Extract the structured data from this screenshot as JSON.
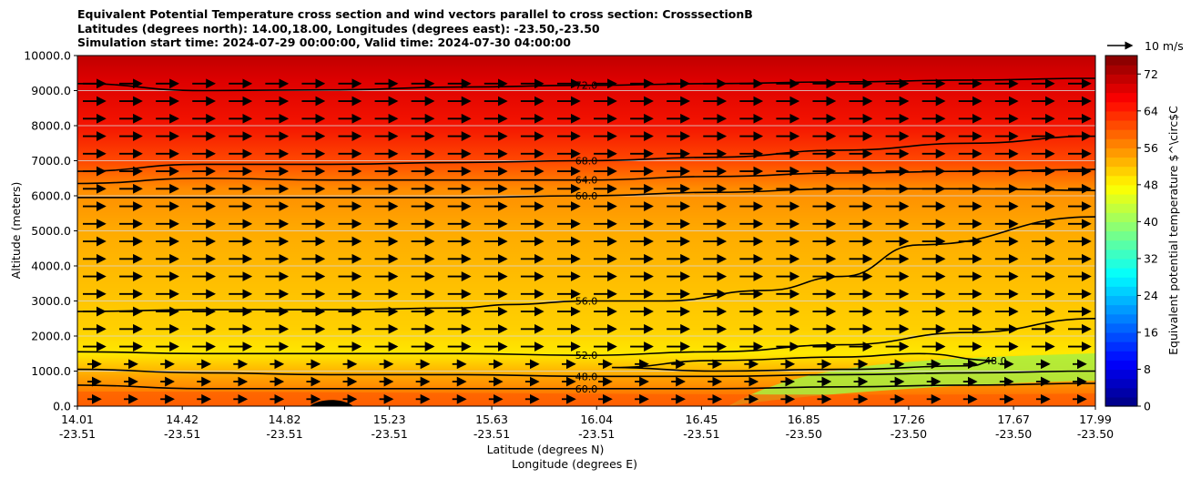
{
  "chart_data": {
    "type": "heatmap",
    "title": "Equivalent Potential Temperature cross section and wind vectors parallel to cross section: CrosssectionB",
    "subtitle_lines": [
      "Latitudes (degrees north): 14.00,18.00, Longitudes (degrees east): -23.50,-23.50",
      "Simulation start time: 2024-07-29 00:00:00, Valid time: 2024-07-30 04:00:00"
    ],
    "xlabel_lines": [
      "Latitude (degrees N)",
      "Longitude (degrees E)"
    ],
    "ylabel": "Altitude (meters)",
    "ylim": [
      0,
      10000
    ],
    "xlim": [
      14.01,
      17.99
    ],
    "y_ticks": [
      "0.0",
      "1000.0",
      "2000.0",
      "3000.0",
      "4000.0",
      "5000.0",
      "6000.0",
      "7000.0",
      "8000.0",
      "9000.0",
      "10000.0"
    ],
    "x_ticks": [
      {
        "lat": "14.01",
        "lon": "-23.51"
      },
      {
        "lat": "14.42",
        "lon": "-23.51"
      },
      {
        "lat": "14.82",
        "lon": "-23.51"
      },
      {
        "lat": "15.23",
        "lon": "-23.51"
      },
      {
        "lat": "15.63",
        "lon": "-23.51"
      },
      {
        "lat": "16.04",
        "lon": "-23.51"
      },
      {
        "lat": "16.45",
        "lon": "-23.51"
      },
      {
        "lat": "16.85",
        "lon": "-23.50"
      },
      {
        "lat": "17.26",
        "lon": "-23.50"
      },
      {
        "lat": "17.67",
        "lon": "-23.50"
      },
      {
        "lat": "17.99",
        "lon": "-23.50"
      }
    ],
    "grid": "horizontal",
    "colorbar": {
      "label": "Equivalent potential temperature $^\\circ$C",
      "range": [
        0,
        76
      ],
      "ticks": [
        "0",
        "8",
        "16",
        "24",
        "32",
        "40",
        "48",
        "56",
        "64",
        "72"
      ],
      "colormap": "jet"
    },
    "quiver_key": {
      "label": "10 m/s",
      "position": "top-right"
    },
    "contours": [
      {
        "level": 72.0,
        "x": [
          14.01,
          14.5,
          15.0,
          15.5,
          16.0,
          16.5,
          17.0,
          17.5,
          17.99
        ],
        "y": [
          9200,
          9000,
          9020,
          9100,
          9150,
          9200,
          9250,
          9300,
          9350
        ]
      },
      {
        "level": 68.0,
        "x": [
          14.01,
          14.5,
          15.0,
          15.5,
          16.0,
          16.5,
          17.0,
          17.5,
          17.99
        ],
        "y": [
          6700,
          6900,
          6900,
          6950,
          7000,
          7100,
          7300,
          7500,
          7700
        ]
      },
      {
        "level": 64.0,
        "x": [
          14.01,
          14.5,
          15.0,
          15.5,
          16.0,
          16.5,
          17.0,
          17.5,
          17.99
        ],
        "y": [
          6350,
          6500,
          6450,
          6450,
          6450,
          6550,
          6650,
          6700,
          6750
        ]
      },
      {
        "level": 60.0,
        "x": [
          14.01,
          14.5,
          15.0,
          15.5,
          16.0,
          16.5,
          17.0,
          17.5,
          17.99
        ],
        "y": [
          5950,
          5950,
          5950,
          5950,
          6000,
          6100,
          6200,
          6200,
          6150
        ]
      },
      {
        "level": 56.0,
        "x": [
          14.01,
          14.5,
          15.0,
          15.5,
          15.7,
          16.0,
          16.3,
          16.7,
          17.0,
          17.3,
          17.99
        ],
        "y": [
          2700,
          2750,
          2750,
          2800,
          2900,
          3000,
          3000,
          3300,
          3700,
          4600,
          5400
        ]
      },
      {
        "level": 52.0,
        "x": [
          14.01,
          14.5,
          15.0,
          15.5,
          16.0,
          16.5,
          17.0,
          17.5,
          17.99
        ],
        "y": [
          1550,
          1500,
          1500,
          1500,
          1450,
          1550,
          1750,
          2100,
          2500
        ]
      },
      {
        "level": 48.0,
        "x": [
          16.1,
          16.5,
          17.0,
          17.3,
          17.6,
          17.5,
          17.0,
          16.5,
          16.1
        ],
        "y": [
          1100,
          1300,
          1400,
          1500,
          1300,
          1150,
          1050,
          1000,
          1100
        ]
      },
      {
        "level": 48.0,
        "x": [
          14.01,
          14.5,
          15.0,
          15.5,
          16.0,
          16.5,
          17.0,
          17.5,
          17.99
        ],
        "y": [
          1050,
          950,
          900,
          900,
          850,
          850,
          900,
          950,
          1000
        ]
      },
      {
        "level": 60.0,
        "x": [
          14.01,
          14.5,
          15.0,
          15.5,
          16.0,
          16.5,
          17.0,
          17.5,
          17.99
        ],
        "y": [
          600,
          500,
          500,
          500,
          500,
          500,
          550,
          600,
          650
        ]
      }
    ]
  }
}
